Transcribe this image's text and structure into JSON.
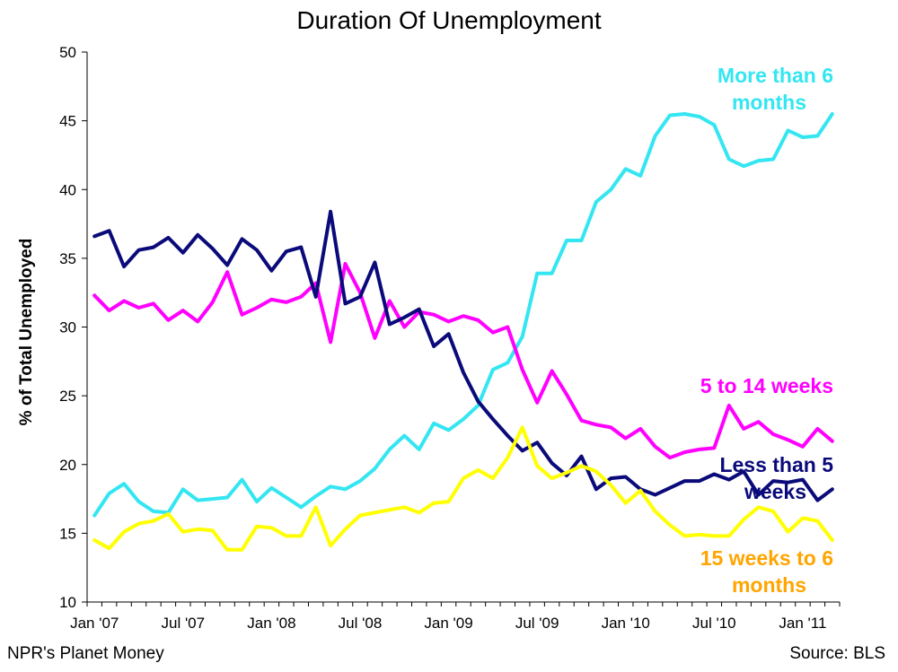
{
  "footer": {
    "left": "NPR's Planet Money",
    "right": "Source: BLS"
  },
  "chart_data": {
    "type": "line",
    "title": "Duration Of Unemployment",
    "xlabel": "",
    "ylabel": "% of Total Unemployed",
    "ylim": [
      10,
      50
    ],
    "y_ticks": [
      10,
      15,
      20,
      25,
      30,
      35,
      40,
      45,
      50
    ],
    "x_tick_labels": [
      "Jan '07",
      "Jul '07",
      "Jan '08",
      "Jul '08",
      "Jan '09",
      "Jul '09",
      "Jan '10",
      "Jul '10",
      "Jan '11"
    ],
    "x_tick_month_index": [
      0,
      6,
      12,
      18,
      24,
      30,
      36,
      42,
      48
    ],
    "n_months": 51,
    "grid": false,
    "series": [
      {
        "name": "More than 6 months",
        "label_lines": [
          "More than 6",
          "months"
        ],
        "color": "#33E6F2",
        "values": [
          16.3,
          17.9,
          18.6,
          17.3,
          16.6,
          16.5,
          18.2,
          17.4,
          17.5,
          17.6,
          18.9,
          17.3,
          18.3,
          17.6,
          16.9,
          17.7,
          18.4,
          18.2,
          18.8,
          19.7,
          21.1,
          22.1,
          21.1,
          23.0,
          22.5,
          23.3,
          24.3,
          26.9,
          27.4,
          29.3,
          33.9,
          33.9,
          36.3,
          36.3,
          39.1,
          40.0,
          41.5,
          41.0,
          43.9,
          45.4,
          45.5,
          45.3,
          44.7,
          42.2,
          41.7,
          42.1,
          42.2,
          44.3,
          43.8,
          43.9,
          45.5
        ]
      },
      {
        "name": "5 to 14 weeks",
        "label_lines": [
          "5 to 14 weeks"
        ],
        "color": "#FF00FF",
        "values": [
          32.3,
          31.2,
          31.9,
          31.4,
          31.7,
          30.5,
          31.2,
          30.4,
          31.8,
          34.0,
          30.9,
          31.4,
          32.0,
          31.8,
          32.2,
          33.2,
          28.9,
          34.6,
          32.5,
          29.2,
          31.9,
          30.0,
          31.1,
          30.9,
          30.4,
          30.8,
          30.5,
          29.6,
          30.0,
          26.9,
          24.5,
          26.8,
          25.1,
          23.2,
          22.9,
          22.7,
          21.9,
          22.6,
          21.3,
          20.5,
          20.9,
          21.1,
          21.2,
          24.3,
          22.6,
          23.1,
          22.2,
          21.8,
          21.3,
          22.6,
          21.7
        ]
      },
      {
        "name": "Less than 5 weeks",
        "label_lines": [
          "Less than 5",
          "weeks"
        ],
        "color": "#0A0A7A",
        "values": [
          36.6,
          37.0,
          34.4,
          35.6,
          35.8,
          36.5,
          35.4,
          36.7,
          35.7,
          34.5,
          36.4,
          35.6,
          34.1,
          35.5,
          35.8,
          32.2,
          38.4,
          31.7,
          32.2,
          34.7,
          30.2,
          30.7,
          31.3,
          28.6,
          29.5,
          26.7,
          24.6,
          23.3,
          22.1,
          21.0,
          21.6,
          20.1,
          19.2,
          20.6,
          18.2,
          19.0,
          19.1,
          18.2,
          17.8,
          18.3,
          18.8,
          18.8,
          19.3,
          18.9,
          19.5,
          17.8,
          18.8,
          18.7,
          18.9,
          17.4,
          18.2
        ]
      },
      {
        "name": "15 weeks to 6 months",
        "label_lines": [
          "15 weeks to 6",
          "months"
        ],
        "color": "#FFFF00",
        "label_color": "#FFA500",
        "values": [
          14.5,
          13.9,
          15.1,
          15.7,
          15.9,
          16.4,
          15.1,
          15.3,
          15.2,
          13.8,
          13.8,
          15.5,
          15.4,
          14.8,
          14.8,
          16.9,
          14.1,
          15.3,
          16.3,
          16.5,
          16.7,
          16.9,
          16.5,
          17.2,
          17.3,
          19.0,
          19.6,
          19.0,
          20.5,
          22.7,
          19.9,
          19.0,
          19.4,
          19.9,
          19.5,
          18.5,
          17.2,
          18.1,
          16.6,
          15.6,
          14.8,
          14.9,
          14.8,
          14.8,
          16.0,
          16.9,
          16.6,
          15.1,
          16.1,
          15.9,
          14.5
        ]
      }
    ]
  }
}
